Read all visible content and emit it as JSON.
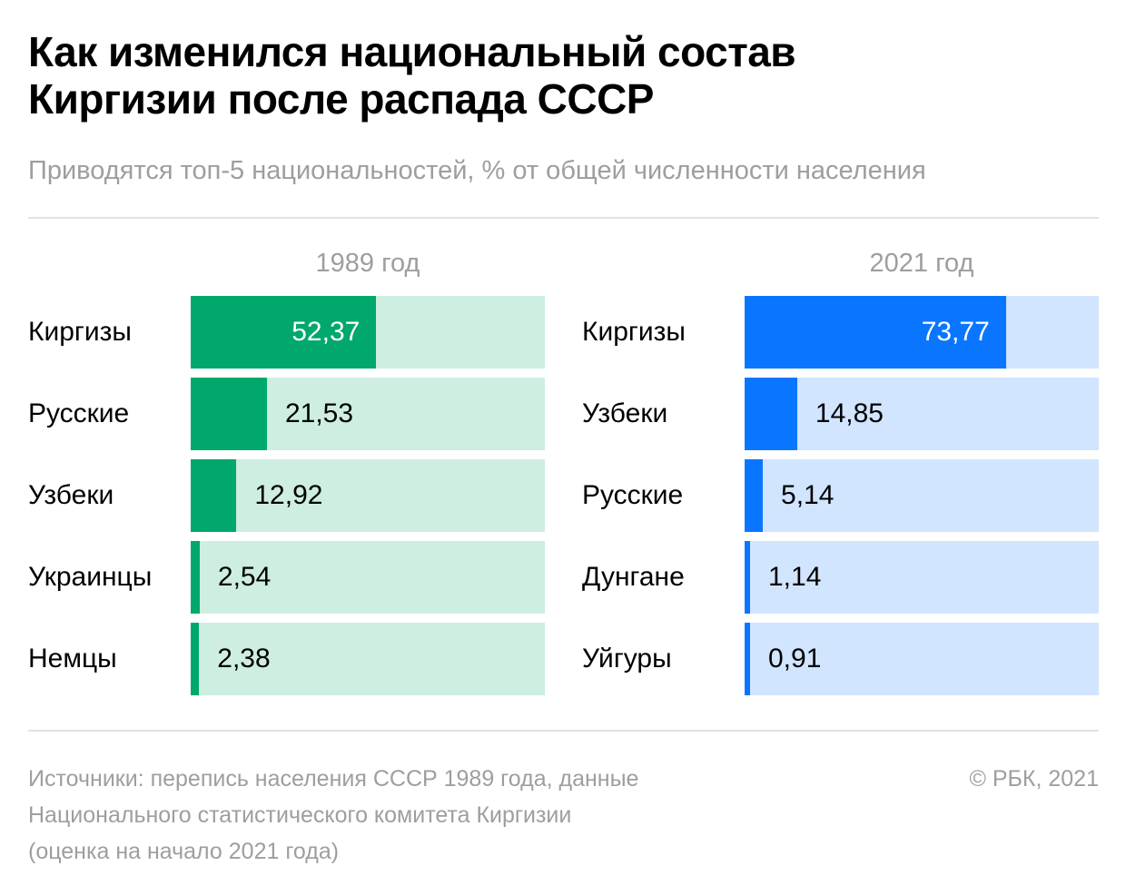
{
  "header": {
    "title_line1": "Как изменился национальный состав",
    "title_line2": "Киргизии после распада СССР",
    "subtitle": "Приводятся топ-5 национальностей, % от общей численности населения"
  },
  "chart_data": [
    {
      "type": "bar",
      "orientation": "horizontal",
      "title": "1989 год",
      "categories": [
        "Киргизы",
        "Русские",
        "Узбеки",
        "Украинцы",
        "Немцы"
      ],
      "values": [
        52.37,
        21.53,
        12.92,
        2.54,
        2.38
      ],
      "value_labels": [
        "52,37",
        "21,53",
        "12,92",
        "2,54",
        "2,38"
      ],
      "xlim": [
        0,
        100
      ],
      "unit": "%",
      "bar_color": "#00a86b",
      "track_color": "#cdeee0",
      "grid": false
    },
    {
      "type": "bar",
      "orientation": "horizontal",
      "title": "2021 год",
      "categories": [
        "Киргизы",
        "Узбеки",
        "Русские",
        "Дунгане",
        "Уйгуры"
      ],
      "values": [
        73.77,
        14.85,
        5.14,
        1.14,
        0.91
      ],
      "value_labels": [
        "73,77",
        "14,85",
        "5,14",
        "1,14",
        "0,91"
      ],
      "xlim": [
        0,
        100
      ],
      "unit": "%",
      "bar_color": "#0a76ff",
      "track_color": "#d1e5ff",
      "grid": false
    }
  ],
  "footer": {
    "source_line1": "Источники: перепись населения СССР 1989 года, данные",
    "source_line2": "Национального статистического комитета Киргизии",
    "source_line3": "(оценка на начало 2021 года)",
    "copyright": "© РБК, 2021"
  }
}
